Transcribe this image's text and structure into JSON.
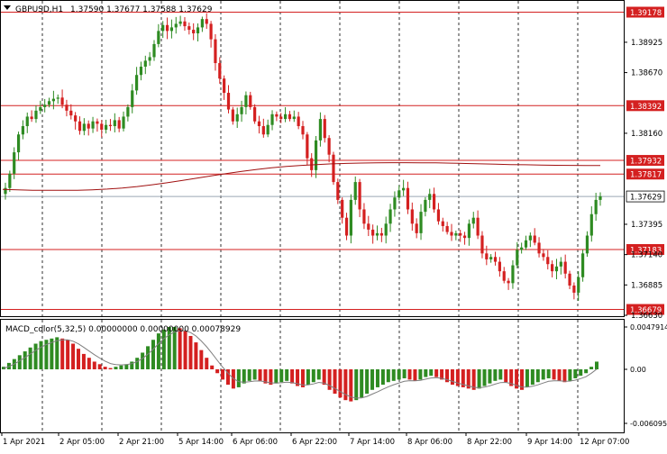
{
  "header": {
    "symbol": "GBPUSD,H1",
    "ohlc": "1.37590 1.37677 1.37588 1.37629"
  },
  "macd_header": "MACD_color(5,32,5) 0.00000000 0.00000000 0.00078929",
  "colors": {
    "bull": "#2e8b22",
    "bear": "#d42020",
    "level_line": "#d42020",
    "ma_line": "#a01010",
    "grid": "#000000",
    "current_price_bg": "#ffffff",
    "signal": "#7f7f7f"
  },
  "chart_data": [
    {
      "type": "candlestick",
      "title": "GBPUSD,H1",
      "x_tick_labels": [
        "1 Apr 2021",
        "2 Apr 05:00",
        "2 Apr 21:00",
        "5 Apr 14:00",
        "6 Apr 06:00",
        "6 Apr 22:00",
        "7 Apr 14:00",
        "8 Apr 06:00",
        "8 Apr 22:00",
        "9 Apr 14:00",
        "12 Apr 07:00"
      ],
      "y_tick_labels": [
        "1.38925",
        "1.38670",
        "1.38160",
        "1.37395",
        "1.37140",
        "1.36885",
        "1.36630"
      ],
      "ylim": [
        1.3663,
        1.3925
      ],
      "levels": [
        {
          "label": "1.39178",
          "value": 1.39178,
          "style": "red-box"
        },
        {
          "label": "1.38392",
          "value": 1.38392,
          "style": "red-box"
        },
        {
          "label": "1.37932",
          "value": 1.37932,
          "style": "red-box"
        },
        {
          "label": "1.37817",
          "value": 1.37817,
          "style": "red-box"
        },
        {
          "label": "1.37183",
          "value": 1.37183,
          "style": "red-box"
        },
        {
          "label": "1.36679",
          "value": 1.36679,
          "style": "red-box"
        }
      ],
      "current_price": {
        "label": "1.37629",
        "value": 1.37629
      },
      "close_path": [
        1.377,
        1.3782,
        1.38,
        1.3815,
        1.3822,
        1.383,
        1.3828,
        1.3835,
        1.3838,
        1.384,
        1.3843,
        1.3845,
        1.3846,
        1.384,
        1.3835,
        1.3831,
        1.3826,
        1.3818,
        1.3824,
        1.382,
        1.3826,
        1.3824,
        1.3819,
        1.3823,
        1.3822,
        1.3827,
        1.382,
        1.383,
        1.3838,
        1.3852,
        1.3865,
        1.3872,
        1.3877,
        1.388,
        1.3891,
        1.3902,
        1.3907,
        1.3902,
        1.3905,
        1.3908,
        1.391,
        1.3906,
        1.3903,
        1.39,
        1.3905,
        1.3912,
        1.3908,
        1.3895,
        1.3875,
        1.3862,
        1.385,
        1.3836,
        1.3826,
        1.3832,
        1.3838,
        1.3848,
        1.3838,
        1.3826,
        1.3822,
        1.3815,
        1.3823,
        1.3832,
        1.383,
        1.3828,
        1.3832,
        1.3828,
        1.383,
        1.3822,
        1.3815,
        1.3795,
        1.3785,
        1.381,
        1.3828,
        1.3812,
        1.3798,
        1.3775,
        1.376,
        1.3745,
        1.373,
        1.376,
        1.3775,
        1.3752,
        1.374,
        1.3735,
        1.373,
        1.3732,
        1.373,
        1.374,
        1.3752,
        1.3762,
        1.3768,
        1.377,
        1.3752,
        1.374,
        1.3732,
        1.375,
        1.376,
        1.3765,
        1.3752,
        1.3742,
        1.3738,
        1.3733,
        1.373,
        1.3732,
        1.373,
        1.3728,
        1.374,
        1.3745,
        1.373,
        1.3715,
        1.371,
        1.3712,
        1.3708,
        1.37,
        1.3692,
        1.369,
        1.3705,
        1.3718,
        1.372,
        1.3726,
        1.373,
        1.3724,
        1.3715,
        1.3712,
        1.3706,
        1.37,
        1.3704,
        1.3708,
        1.3698,
        1.3688,
        1.3682,
        1.3695,
        1.3715,
        1.373,
        1.3748,
        1.376,
        1.3763
      ],
      "ma_path": [
        1.37688,
        1.37685,
        1.37681,
        1.3768,
        1.3768,
        1.37681,
        1.37685,
        1.37691,
        1.377,
        1.37712,
        1.37727,
        1.37744,
        1.37763,
        1.37783,
        1.37803,
        1.37822,
        1.3784,
        1.37856,
        1.3787,
        1.37881,
        1.3789,
        1.37897,
        1.37903,
        1.37907,
        1.3791,
        1.37912,
        1.37913,
        1.37913,
        1.37912,
        1.37911,
        1.37909,
        1.37906,
        1.37903,
        1.379,
        1.37897,
        1.37895,
        1.37892,
        1.37891,
        1.3789,
        1.37889,
        1.37889
      ],
      "macd_hist": [
        2,
        5,
        8,
        11,
        14,
        17,
        20,
        22,
        23,
        24,
        25,
        24,
        23,
        20,
        16,
        12,
        9,
        6,
        4,
        2,
        1,
        2,
        3,
        4,
        6,
        9,
        13,
        18,
        23,
        28,
        31,
        33,
        33,
        32,
        30,
        26,
        21,
        15,
        9,
        3,
        -3,
        -8,
        -12,
        -15,
        -14,
        -11,
        -9,
        -8,
        -9,
        -11,
        -12,
        -11,
        -10,
        -9,
        -11,
        -13,
        -14,
        -12,
        -10,
        -8,
        -12,
        -16,
        -19,
        -22,
        -24,
        -25,
        -24,
        -22,
        -19,
        -16,
        -14,
        -12,
        -10,
        -9,
        -8,
        -7,
        -8,
        -9,
        -8,
        -6,
        -5,
        -6,
        -8,
        -10,
        -12,
        -13,
        -14,
        -15,
        -16,
        -15,
        -13,
        -11,
        -9,
        -8,
        -10,
        -13,
        -15,
        -16,
        -14,
        -12,
        -10,
        -8,
        -7,
        -8,
        -9,
        -10,
        -9,
        -7,
        -5,
        -3,
        2,
        6
      ],
      "macd_ticks": [
        {
          "label": "0.0047914",
          "value": 0.0047914
        },
        {
          "label": "0.00",
          "value": 0
        },
        {
          "label": "-0.006095",
          "value": -0.006095
        }
      ]
    }
  ]
}
